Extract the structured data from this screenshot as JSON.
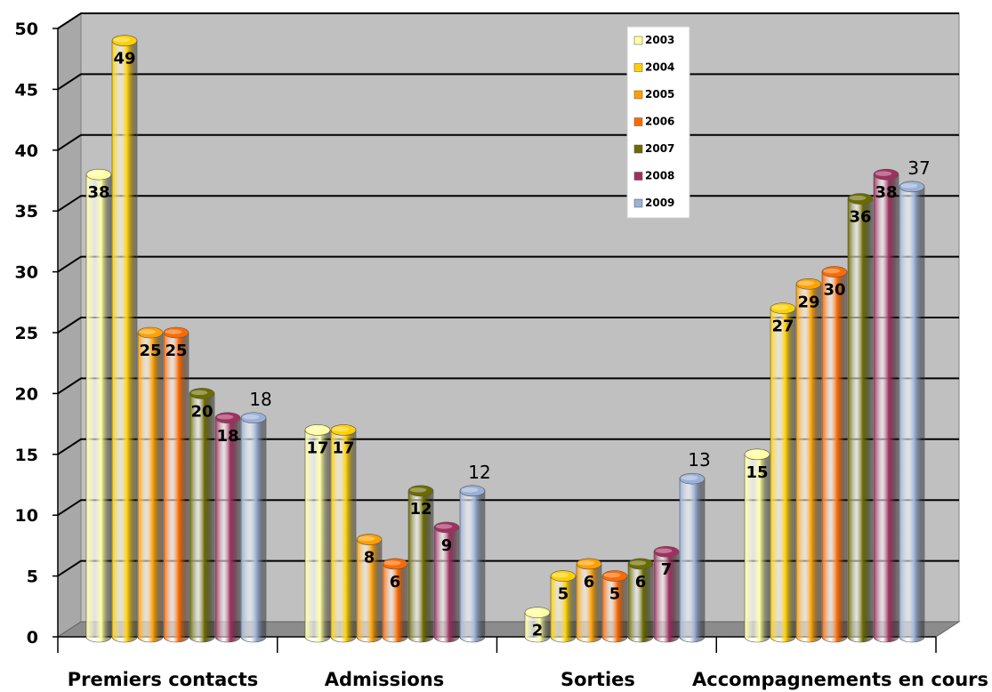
{
  "chart_data": {
    "type": "bar",
    "title": "",
    "xlabel": "",
    "ylabel": "",
    "ylim": [
      0,
      50
    ],
    "yticks": [
      0,
      5,
      10,
      15,
      20,
      25,
      30,
      35,
      40,
      45,
      50
    ],
    "grid": true,
    "legend_position": "top-right",
    "categories": [
      "Premiers contacts",
      "Admissions",
      "Sorties",
      "Accompagnements en cours"
    ],
    "series": [
      {
        "name": "2003",
        "color": "#ffffa0",
        "values": [
          38,
          17,
          2,
          15
        ]
      },
      {
        "name": "2004",
        "color": "#ffd000",
        "values": [
          49,
          17,
          5,
          27
        ]
      },
      {
        "name": "2005",
        "color": "#ffa000",
        "values": [
          25,
          8,
          6,
          29
        ]
      },
      {
        "name": "2006",
        "color": "#ff6a00",
        "values": [
          25,
          6,
          5,
          30
        ]
      },
      {
        "name": "2007",
        "color": "#6b6b00",
        "values": [
          20,
          12,
          6,
          36
        ]
      },
      {
        "name": "2008",
        "color": "#a0305f",
        "values": [
          18,
          9,
          7,
          38
        ]
      },
      {
        "name": "2009",
        "color": "#9ab0d8",
        "values": [
          18,
          12,
          13,
          37
        ]
      }
    ]
  }
}
